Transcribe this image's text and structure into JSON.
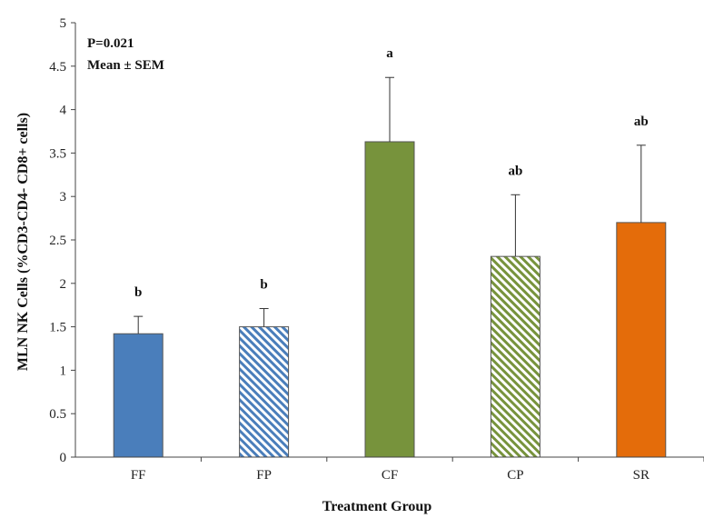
{
  "chart_data": {
    "type": "bar",
    "categories": [
      "FF",
      "FP",
      "CF",
      "CP",
      "SR"
    ],
    "values": [
      1.42,
      1.5,
      3.63,
      2.31,
      2.7
    ],
    "errors": [
      0.2,
      0.21,
      0.74,
      0.71,
      0.89
    ],
    "significance": [
      "b",
      "b",
      "a",
      "ab",
      "ab"
    ],
    "colors": [
      "#4a7ebb",
      "#4a7ebb",
      "#77933c",
      "#77933c",
      "#e46c0a"
    ],
    "patterns": [
      "solid",
      "hatched",
      "solid",
      "hatched",
      "solid"
    ],
    "title": "",
    "xlabel": "Treatment Group",
    "ylabel": "MLN NK Cells (%CD3-CD4- CD8+ cells)",
    "ylim": [
      0,
      5
    ],
    "yticks": [
      "0",
      "0.5",
      "1",
      "1.5",
      "2",
      "2.5",
      "3",
      "3.5",
      "4",
      "4.5",
      "5"
    ],
    "annotations": [
      "P=0.021",
      "Mean ± SEM"
    ]
  }
}
